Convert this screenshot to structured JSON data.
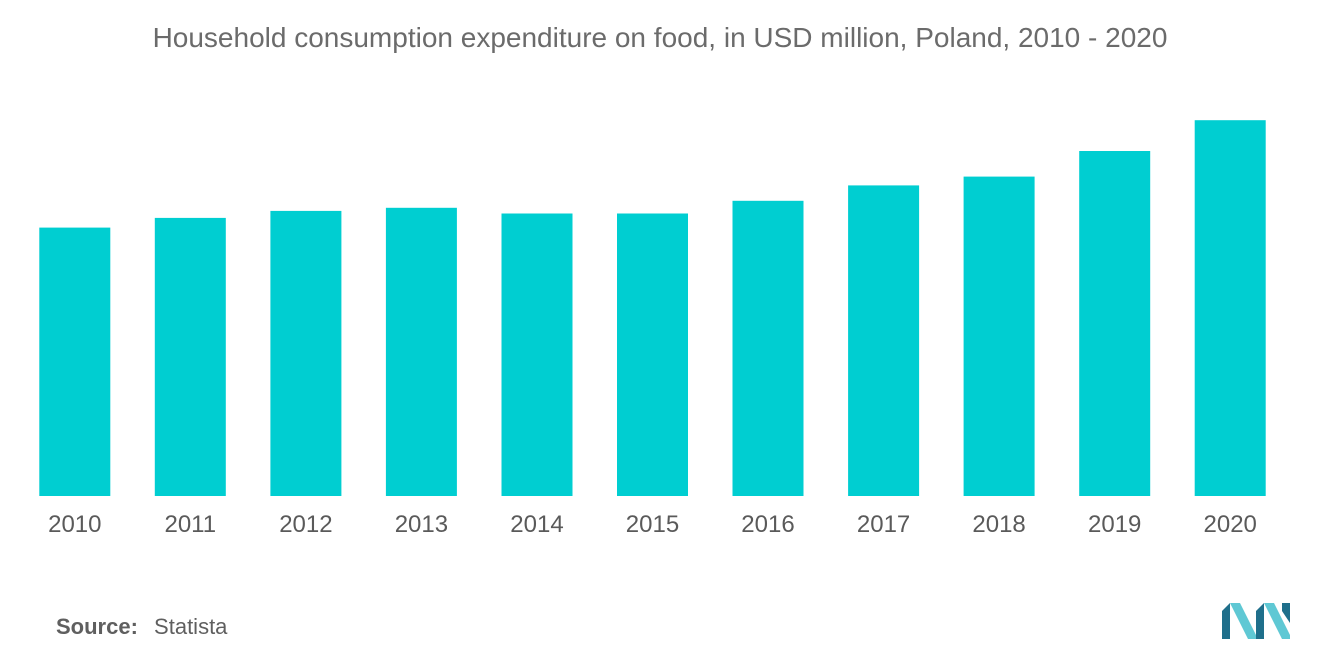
{
  "chart_data": {
    "type": "bar",
    "title": "Household consumption expenditure on food, in USD million, Poland, 2010 - 2020",
    "xlabel": "",
    "ylabel": "",
    "categories": [
      "2010",
      "2011",
      "2012",
      "2013",
      "2014",
      "2015",
      "2016",
      "2017",
      "2018",
      "2019",
      "2020"
    ],
    "values": [
      61000,
      63200,
      64800,
      65500,
      64200,
      64200,
      67100,
      70600,
      72600,
      78400,
      85400
    ],
    "ylim": [
      0,
      100000
    ],
    "bar_color": "#00ced1",
    "grid": false,
    "legend": "none"
  },
  "source": {
    "label": "Source:",
    "value": "Statista"
  },
  "colors": {
    "title": "#6b6b6b",
    "tick": "#5a5a5a",
    "logo_dark": "#1f6f8b",
    "logo_light": "#5fc8d4"
  }
}
